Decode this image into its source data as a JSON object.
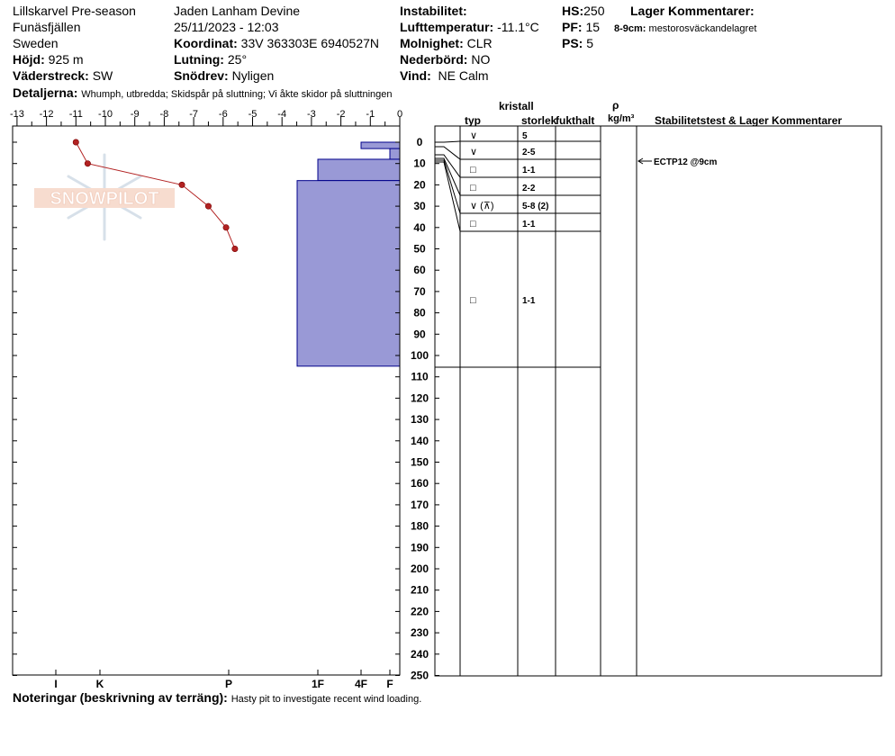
{
  "header": {
    "location": "Lillskarvel Pre-season",
    "region": "Funäsfjällen",
    "country": "Sweden",
    "elevation_label": "Höjd:",
    "elevation": "925 m",
    "aspect_label": "Väderstreck:",
    "aspect": "SW",
    "observer": "Jaden Lanham Devine",
    "datetime": "25/11/2023 - 12:03",
    "coord_label": "Koordinat:",
    "coord": "33V 363303E 6940527N",
    "slope_label": "Lutning:",
    "slope": "25°",
    "drift_label": "Snödrev:",
    "drift": "Nyligen",
    "instability_label": "Instabilitet:",
    "airtemp_label": "Lufttemperatur:",
    "airtemp": "-11.1°C",
    "sky_label": "Molnighet:",
    "sky": "CLR",
    "precip_label": "Nederbörd:",
    "precip": "NO",
    "wind_label": "Vind:",
    "wind": "NE Calm",
    "hs_label": "HS:",
    "hs": "250",
    "pf_label": "PF:",
    "pf": "15",
    "ps_label": "PS:",
    "ps": "5",
    "layer_comments_label": "Lager Kommentarer:",
    "layer_comment_depth": "8-9cm:",
    "layer_comment_text": "mestorosväckandelagret",
    "details_label": "Detaljerna:",
    "details": "Whumph, utbredda;  Skidspår på sluttning;  Vi åkte skidor på sluttningen"
  },
  "footer": {
    "notes_label": "Noteringar (beskrivning av terräng):",
    "notes": "Hasty pit to investigate recent wind loading."
  },
  "watermark": {
    "text": "SNOWPILOT"
  },
  "table": {
    "col_crystal": "kristall",
    "col_type": "typ",
    "col_size": "storlek",
    "col_moisture": "fukthalt",
    "col_rho": "ρ",
    "col_density_unit": "kg/m³",
    "col_stability": "Stabilitetstest & Lager Kommentarer",
    "layers": [
      {
        "type": "∨",
        "size": "5"
      },
      {
        "type": "∨",
        "size": "2-5"
      },
      {
        "type": "□",
        "size": "1-1"
      },
      {
        "type": "□",
        "size": "2-2"
      },
      {
        "type": "∨ (⊼)",
        "size": "5-8 (2)"
      },
      {
        "type": "□",
        "size": "1-1"
      },
      {
        "type": "□",
        "size": "1-1"
      }
    ],
    "stability_test": "ECTP12 @9cm"
  },
  "colors": {
    "layer_fill": "#9999d6",
    "layer_stroke": "#00008b",
    "temp_line": "#b22222"
  },
  "chart_data": {
    "type": "line",
    "temperature_axis": {
      "ticks": [
        "-13",
        "-12",
        "-11",
        "-10",
        "-9",
        "-8",
        "-7",
        "-6",
        "-5",
        "-4",
        "-3",
        "-2",
        "-1",
        "0"
      ],
      "range": [
        -13,
        0
      ]
    },
    "depth_axis": {
      "range": [
        0,
        250
      ],
      "step": 10,
      "unit": "cm"
    },
    "hardness_axis": {
      "labels": [
        "I",
        "K",
        "P",
        "1F",
        "4F",
        "F"
      ]
    },
    "temperature_profile": {
      "depth": [
        0,
        10,
        20,
        30,
        40,
        50
      ],
      "temp": [
        -11.0,
        -10.6,
        -7.4,
        -6.5,
        -5.9,
        -5.6
      ]
    },
    "layers": [
      {
        "top": 0,
        "bottom": 3,
        "hardness": "4F"
      },
      {
        "top": 3,
        "bottom": 8,
        "hardness": "F"
      },
      {
        "top": 8,
        "bottom": 18,
        "hardness": "1F"
      },
      {
        "top": 18,
        "bottom": 105,
        "hardness": "1F+"
      }
    ]
  }
}
